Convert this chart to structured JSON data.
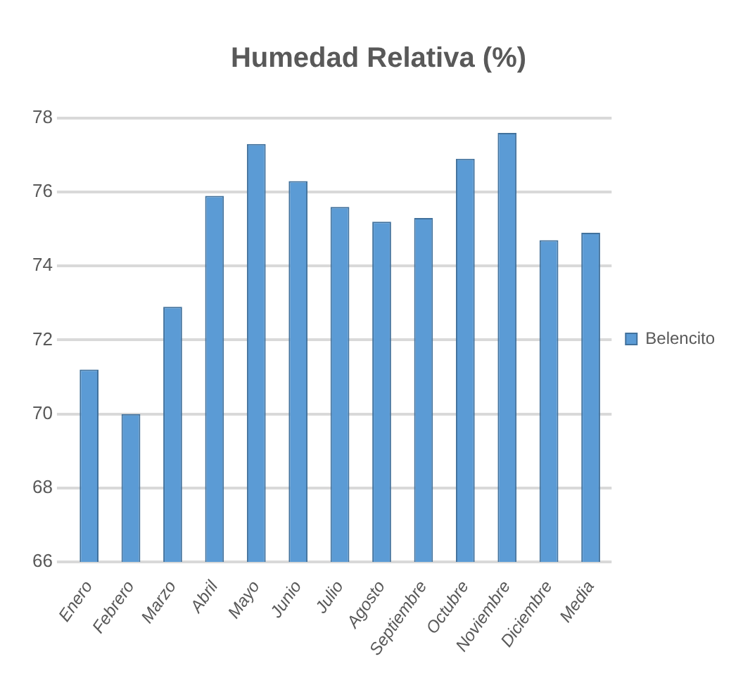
{
  "chart_data": {
    "type": "bar",
    "title": "Humedad Relativa (%)",
    "categories": [
      "Enero",
      "Febrero",
      "Marzo",
      "Abril",
      "Mayo",
      "Junio",
      "Julio",
      "Agosto",
      "Septiembre",
      "Octubre",
      "Noviembre",
      "Diciembre",
      "Media"
    ],
    "series": [
      {
        "name": "Belencito",
        "color": "#5b9bd5",
        "values": [
          71.2,
          70.0,
          72.9,
          75.9,
          77.3,
          76.3,
          75.6,
          75.2,
          75.3,
          76.9,
          77.6,
          74.7,
          74.9
        ]
      }
    ],
    "ylim": [
      66,
      78
    ],
    "yticks": [
      66,
      68,
      70,
      72,
      74,
      76,
      78
    ],
    "grid": "y",
    "legend": "right"
  }
}
